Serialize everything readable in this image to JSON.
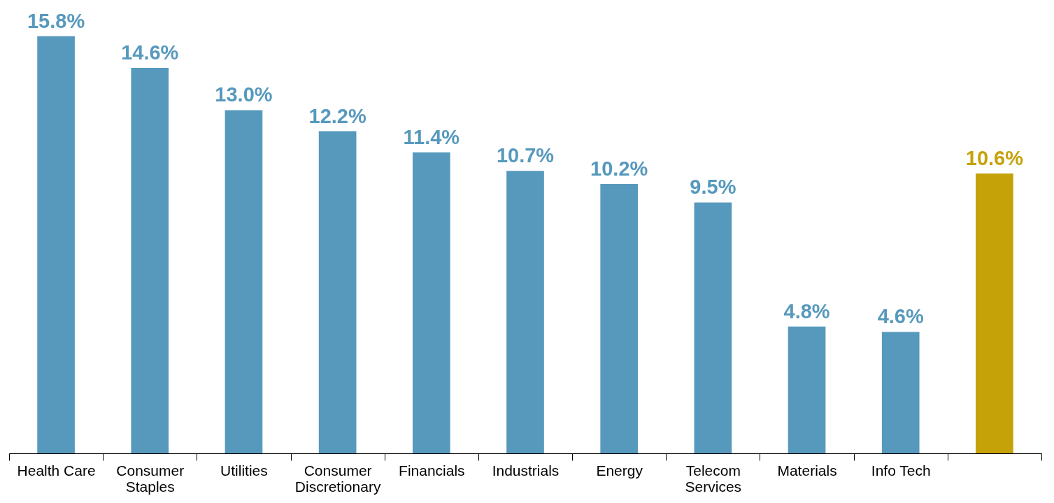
{
  "chart_data": {
    "type": "bar",
    "categories": [
      "Health Care",
      "Consumer Staples",
      "Utilities",
      "Consumer Discretionary",
      "Financials",
      "Industrials",
      "Energy",
      "Telecom Services",
      "Materials",
      "Info Tech",
      null
    ],
    "values": [
      15.8,
      14.6,
      13.0,
      12.2,
      11.4,
      10.7,
      10.2,
      9.5,
      4.8,
      4.6,
      10.6
    ],
    "value_labels": [
      "15.8%",
      "14.6%",
      "13.0%",
      "12.2%",
      "11.4%",
      "10.7%",
      "10.2%",
      "9.5%",
      "4.8%",
      "4.6%",
      "10.6%"
    ],
    "colors": [
      "#5799bd",
      "#5799bd",
      "#5799bd",
      "#5799bd",
      "#5799bd",
      "#5799bd",
      "#5799bd",
      "#5799bd",
      "#5799bd",
      "#5799bd",
      "#c4a208"
    ],
    "grid": false
  }
}
